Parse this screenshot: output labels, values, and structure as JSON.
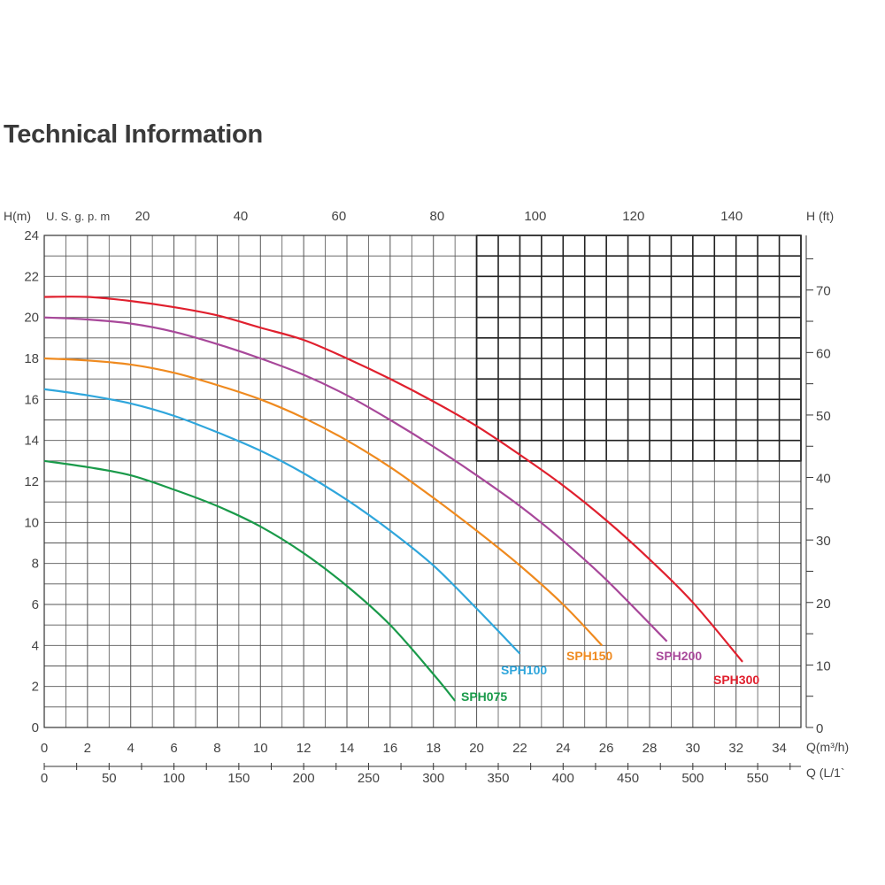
{
  "title": "Technical Information",
  "chart_data": {
    "type": "line",
    "title": "Technical Information",
    "xlabel": "Q(m³/h)",
    "ylabel": "H(m)",
    "x_ticks": [
      "0",
      "2",
      "4",
      "6",
      "8",
      "10",
      "12",
      "14",
      "16",
      "18",
      "20",
      "22",
      "24",
      "26",
      "28",
      "30",
      "32",
      "34"
    ],
    "y_ticks": [
      "0",
      "2",
      "4",
      "6",
      "8",
      "10",
      "12",
      "14",
      "16",
      "18",
      "20",
      "22",
      "24"
    ],
    "xlim": [
      0,
      35
    ],
    "ylim": [
      0,
      24
    ],
    "grid": true,
    "secondary_axes": {
      "top": {
        "label": "U. S. g. p. m",
        "ticks": [
          "20",
          "40",
          "60",
          "80",
          "100",
          "120",
          "140"
        ]
      },
      "right": {
        "label": "H (ft)",
        "ticks": [
          "0",
          "10",
          "20",
          "30",
          "40",
          "50",
          "60",
          "70"
        ]
      },
      "bottom2": {
        "label": "Q (L/1`",
        "ticks": [
          "0",
          "50",
          "100",
          "150",
          "200",
          "250",
          "300",
          "350",
          "400",
          "450",
          "500",
          "550"
        ]
      }
    },
    "series": [
      {
        "name": "SPH075",
        "color": "#1a9a4a",
        "points": [
          [
            0,
            13
          ],
          [
            2,
            12.7
          ],
          [
            4,
            12.3
          ],
          [
            6,
            11.6
          ],
          [
            8,
            10.8
          ],
          [
            10,
            9.8
          ],
          [
            12,
            8.5
          ],
          [
            14,
            6.9
          ],
          [
            16,
            5
          ],
          [
            18,
            2.6
          ],
          [
            19,
            1.3
          ]
        ]
      },
      {
        "name": "SPH100",
        "color": "#2fa6dc",
        "points": [
          [
            0,
            16.5
          ],
          [
            2,
            16.2
          ],
          [
            4,
            15.8
          ],
          [
            6,
            15.2
          ],
          [
            8,
            14.4
          ],
          [
            10,
            13.5
          ],
          [
            12,
            12.4
          ],
          [
            14,
            11.1
          ],
          [
            16,
            9.6
          ],
          [
            18,
            7.9
          ],
          [
            20,
            5.8
          ],
          [
            22,
            3.6
          ]
        ]
      },
      {
        "name": "SPH150",
        "color": "#ef8a1f",
        "points": [
          [
            0,
            18
          ],
          [
            2,
            17.9
          ],
          [
            4,
            17.7
          ],
          [
            6,
            17.3
          ],
          [
            8,
            16.7
          ],
          [
            10,
            16
          ],
          [
            12,
            15.1
          ],
          [
            14,
            14
          ],
          [
            16,
            12.7
          ],
          [
            18,
            11.2
          ],
          [
            20,
            9.6
          ],
          [
            22,
            7.9
          ],
          [
            24,
            6
          ],
          [
            25.8,
            4
          ]
        ]
      },
      {
        "name": "SPH200",
        "color": "#a8489a",
        "points": [
          [
            0,
            20
          ],
          [
            2,
            19.9
          ],
          [
            4,
            19.7
          ],
          [
            6,
            19.3
          ],
          [
            8,
            18.7
          ],
          [
            10,
            18
          ],
          [
            12,
            17.2
          ],
          [
            14,
            16.2
          ],
          [
            16,
            15
          ],
          [
            18,
            13.7
          ],
          [
            20,
            12.3
          ],
          [
            22,
            10.8
          ],
          [
            24,
            9.1
          ],
          [
            26,
            7.2
          ],
          [
            28.8,
            4.2
          ]
        ]
      },
      {
        "name": "SPH300",
        "color": "#e0202e",
        "points": [
          [
            0,
            21
          ],
          [
            2,
            21
          ],
          [
            4,
            20.8
          ],
          [
            6,
            20.5
          ],
          [
            8,
            20.1
          ],
          [
            10,
            19.5
          ],
          [
            12,
            18.9
          ],
          [
            14,
            18
          ],
          [
            16,
            17
          ],
          [
            18,
            15.9
          ],
          [
            20,
            14.7
          ],
          [
            22,
            13.3
          ],
          [
            24,
            11.8
          ],
          [
            26,
            10.1
          ],
          [
            28,
            8.2
          ],
          [
            30,
            6.1
          ],
          [
            32.3,
            3.2
          ]
        ]
      }
    ]
  }
}
